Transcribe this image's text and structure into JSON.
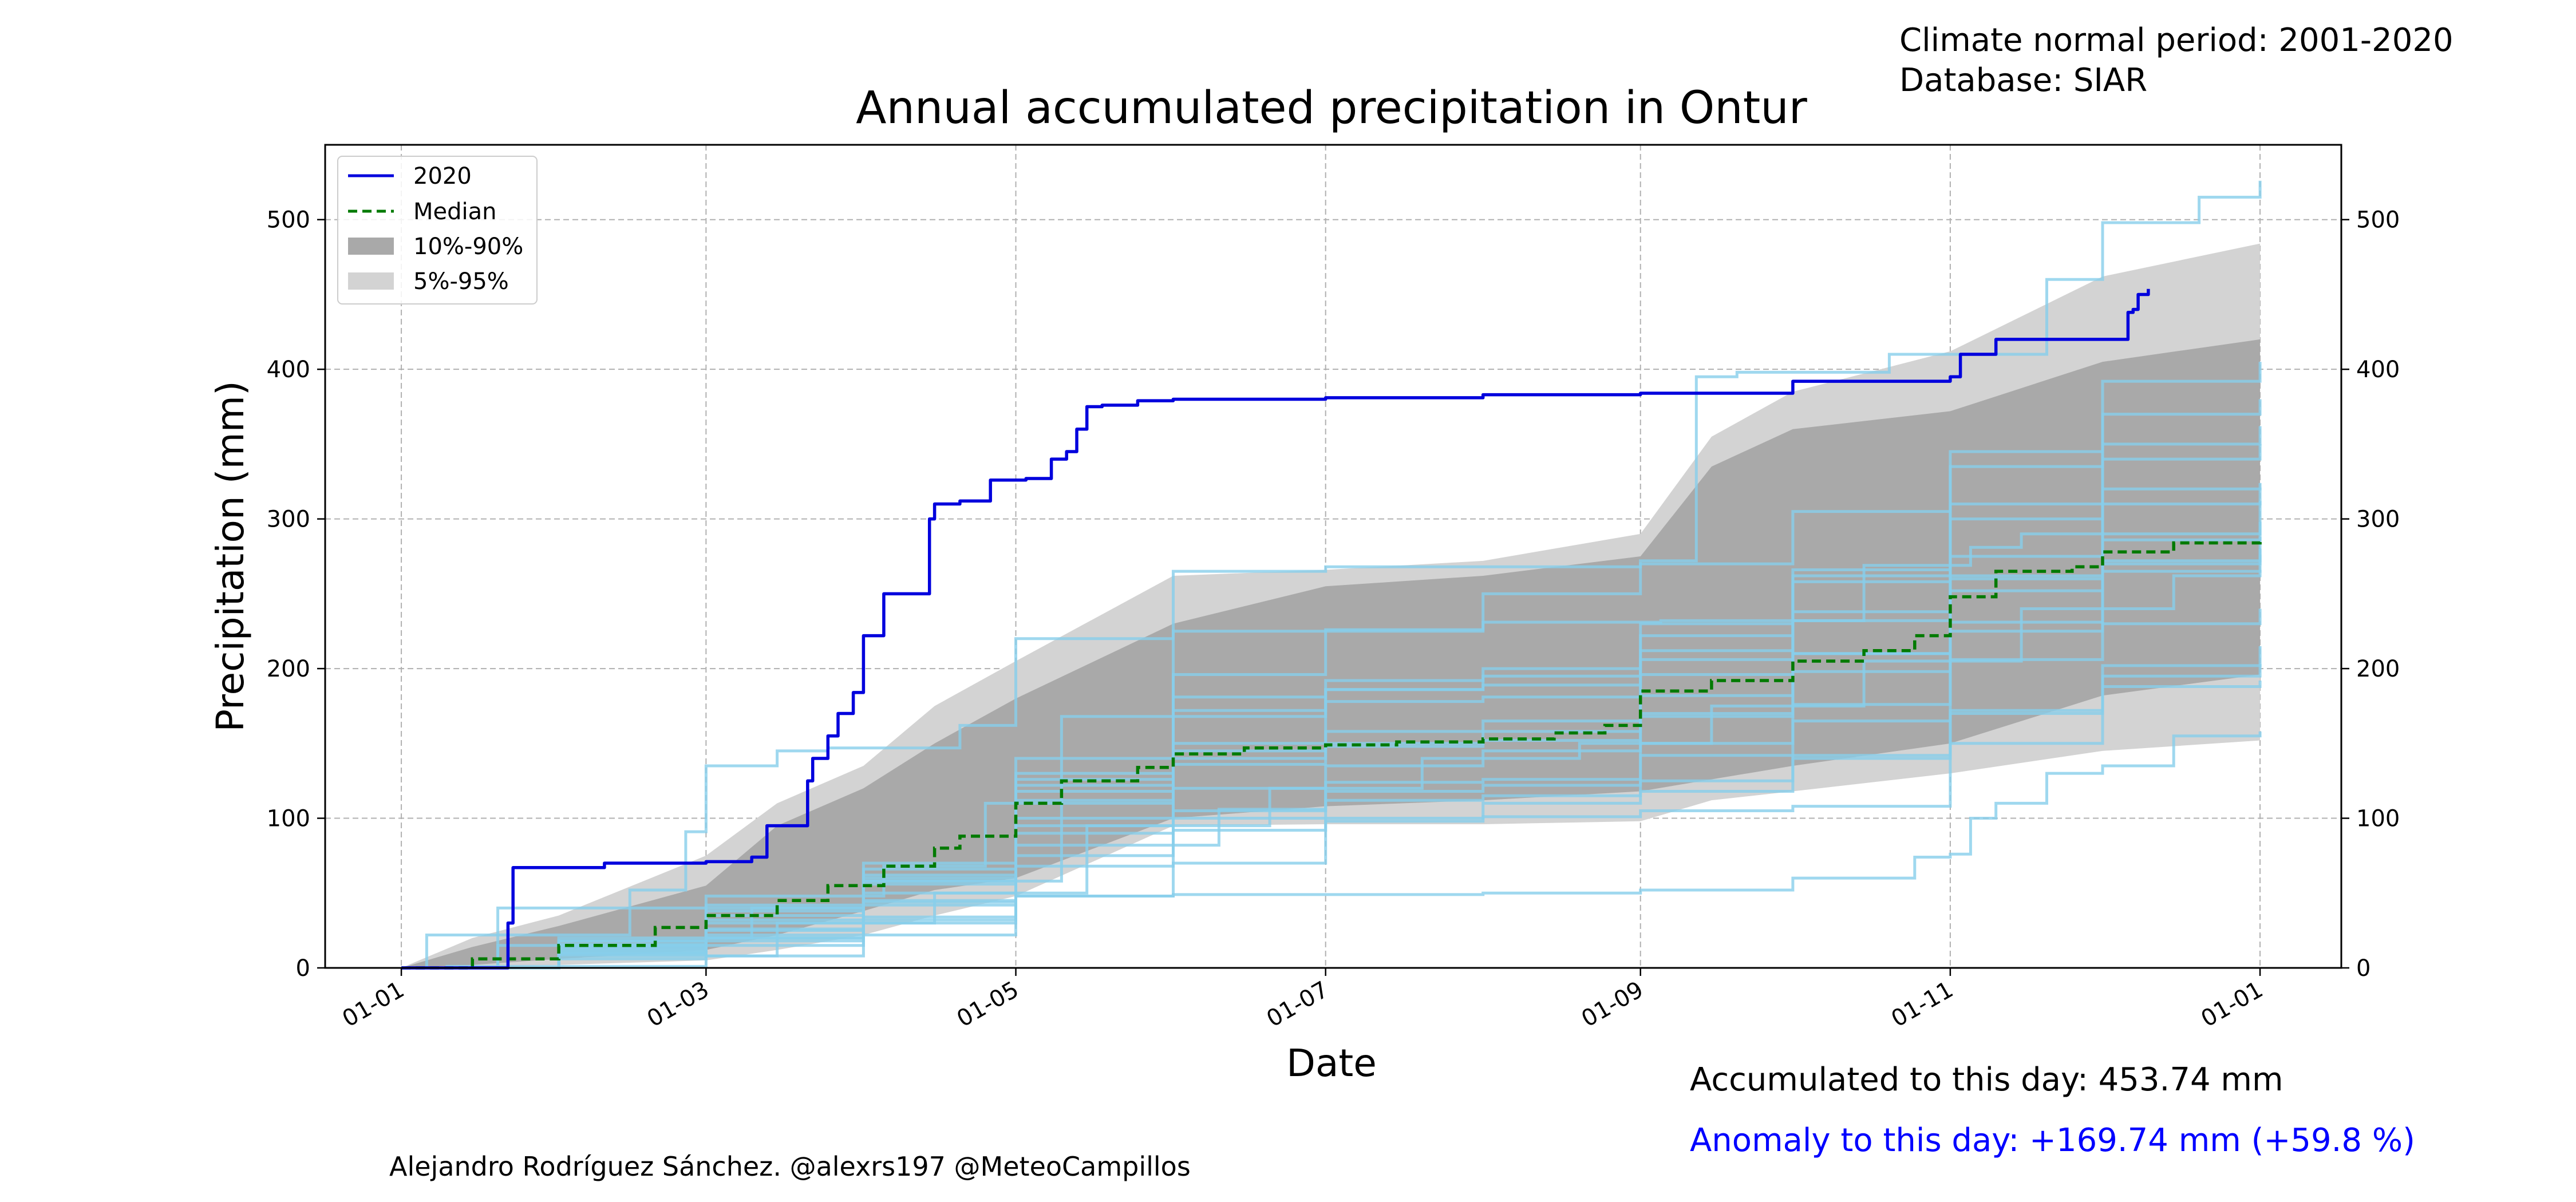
{
  "header": {
    "normal_period": "Climate normal period: 2001-2020",
    "database": "Database: SIAR"
  },
  "footer": {
    "credit": "Alejandro Rodríguez Sánchez. @alexrs197 @MeteoCampillos",
    "accumulated": "Accumulated to this day: 453.74 mm",
    "anomaly": "Anomaly to this day: +169.74 mm (+59.8 %)"
  },
  "colors": {
    "current": "#0000dd",
    "median": "#007a00",
    "band_10_90": "#a9a9a9",
    "band_5_95": "#d3d3d3",
    "history": "#87ceeb",
    "anomaly_text": "#0000ff"
  },
  "chart_data": {
    "type": "line",
    "title": "Annual accumulated precipitation in Ontur",
    "xlabel": "Date",
    "ylabel": "Precipitation (mm)",
    "x_ticks": [
      "01-01",
      "01-03",
      "01-05",
      "01-07",
      "01-09",
      "01-11",
      "01-01"
    ],
    "x_tick_dates": [
      "2020-01-01",
      "2020-03-01",
      "2020-05-01",
      "2020-07-01",
      "2020-09-01",
      "2020-11-01",
      "2021-01-01"
    ],
    "y_ticks": [
      0,
      100,
      200,
      300,
      400,
      500
    ],
    "xlim": [
      "2019-12-17",
      "2021-01-17"
    ],
    "ylim": [
      0,
      550
    ],
    "grid": true,
    "legend_position": "top-left",
    "legend": [
      {
        "label": "2020",
        "kind": "line"
      },
      {
        "label": "Median",
        "kind": "dashed"
      },
      {
        "label": "10%-90%",
        "kind": "band_10_90"
      },
      {
        "label": "5%-95%",
        "kind": "band_5_95"
      }
    ],
    "series": [
      {
        "name": "2020",
        "x": [
          "2020-01-01",
          "2020-01-10",
          "2020-01-19",
          "2020-01-22",
          "2020-01-23",
          "2020-02-10",
          "2020-03-01",
          "2020-03-10",
          "2020-03-12",
          "2020-03-13",
          "2020-03-21",
          "2020-03-22",
          "2020-03-25",
          "2020-03-27",
          "2020-03-30",
          "2020-04-01",
          "2020-04-05",
          "2020-04-06",
          "2020-04-08",
          "2020-04-10",
          "2020-04-14",
          "2020-04-15",
          "2020-04-20",
          "2020-04-24",
          "2020-04-26",
          "2020-05-03",
          "2020-05-08",
          "2020-05-11",
          "2020-05-13",
          "2020-05-15",
          "2020-05-18",
          "2020-05-22",
          "2020-05-25",
          "2020-06-01",
          "2020-06-10",
          "2020-07-01",
          "2020-08-01",
          "2020-09-01",
          "2020-09-18",
          "2020-10-01",
          "2020-10-10",
          "2020-11-01",
          "2020-11-03",
          "2020-11-10",
          "2020-11-25",
          "2020-11-27",
          "2020-12-06",
          "2020-12-07",
          "2020-12-08",
          "2020-12-10"
        ],
        "y": [
          0,
          0,
          0,
          30,
          67,
          70,
          71,
          74,
          74,
          95,
          125,
          140,
          155,
          170,
          184,
          222,
          250,
          250,
          250,
          250,
          300,
          310,
          312,
          312,
          326,
          327,
          340,
          345,
          360,
          375,
          376,
          376,
          379,
          380,
          380,
          381,
          383,
          384,
          384,
          392,
          392,
          395,
          410,
          420,
          420,
          420,
          438,
          440,
          450,
          453.74
        ]
      },
      {
        "name": "Median",
        "x": [
          "2020-01-01",
          "2020-01-15",
          "2020-02-01",
          "2020-02-20",
          "2020-03-01",
          "2020-03-15",
          "2020-03-25",
          "2020-04-05",
          "2020-04-15",
          "2020-04-20",
          "2020-05-01",
          "2020-05-10",
          "2020-05-25",
          "2020-06-01",
          "2020-06-15",
          "2020-07-01",
          "2020-07-15",
          "2020-08-01",
          "2020-08-15",
          "2020-08-25",
          "2020-09-01",
          "2020-09-15",
          "2020-10-01",
          "2020-10-15",
          "2020-10-25",
          "2020-11-01",
          "2020-11-10",
          "2020-11-25",
          "2020-12-01",
          "2020-12-15",
          "2021-01-01"
        ],
        "y": [
          0,
          6,
          15,
          27,
          35,
          45,
          55,
          68,
          80,
          88,
          110,
          125,
          134,
          143,
          147,
          149,
          151,
          153,
          157,
          162,
          185,
          192,
          205,
          212,
          222,
          248,
          265,
          268,
          278,
          284,
          286
        ]
      },
      {
        "name": "historical-1",
        "x": [
          "2020-01-01",
          "2020-01-06",
          "2020-02-15",
          "2020-02-26",
          "2020-03-01",
          "2020-03-15",
          "2020-03-25",
          "2020-04-20",
          "2020-05-01",
          "2020-06-01",
          "2020-08-01",
          "2020-09-05",
          "2020-10-15",
          "2020-11-05",
          "2020-11-15",
          "2020-12-01",
          "2021-01-01"
        ],
        "y": [
          0,
          22,
          52,
          91,
          135,
          145,
          147,
          162,
          220,
          225,
          231,
          232,
          269,
          281,
          290,
          320,
          321
        ]
      },
      {
        "name": "historical-2",
        "x": [
          "2020-01-01",
          "2020-01-10",
          "2020-03-01",
          "2020-04-01",
          "2020-05-01",
          "2020-06-01",
          "2020-08-01",
          "2020-09-01",
          "2020-10-01",
          "2020-10-25",
          "2020-11-01",
          "2020-11-05",
          "2020-11-10",
          "2020-11-20",
          "2020-12-01",
          "2020-12-15",
          "2021-01-01"
        ],
        "y": [
          0,
          1,
          8,
          22,
          48,
          49,
          50,
          52,
          60,
          74,
          76,
          100,
          110,
          130,
          135,
          155,
          158
        ]
      },
      {
        "name": "historical-3",
        "x": [
          "2020-01-01",
          "2020-01-20",
          "2020-03-01",
          "2020-04-05",
          "2020-04-25",
          "2020-06-01",
          "2020-07-01",
          "2020-09-01",
          "2020-09-12",
          "2020-09-20",
          "2020-10-20",
          "2020-11-20",
          "2020-12-01",
          "2020-12-20",
          "2021-01-01"
        ],
        "y": [
          0,
          40,
          48,
          68,
          110,
          265,
          268,
          272,
          395,
          398,
          410,
          460,
          498,
          515,
          526
        ]
      },
      {
        "name": "historical-4",
        "x": [
          "2020-01-01",
          "2020-02-01",
          "2020-03-10",
          "2020-04-01",
          "2020-05-10",
          "2020-06-01",
          "2020-07-01",
          "2020-08-01",
          "2020-09-01",
          "2020-10-01",
          "2020-11-01",
          "2020-12-01",
          "2021-01-01"
        ],
        "y": [
          0,
          20,
          40,
          58,
          168,
          181,
          186,
          189,
          196,
          238,
          262,
          286,
          298
        ]
      },
      {
        "name": "historical-5",
        "x": [
          "2020-01-01",
          "2020-01-20",
          "2020-03-01",
          "2020-04-01",
          "2020-05-01",
          "2020-06-01",
          "2020-08-01",
          "2020-09-01",
          "2020-10-01",
          "2020-11-01",
          "2020-12-01",
          "2021-01-01"
        ],
        "y": [
          0,
          15,
          20,
          32,
          75,
          100,
          110,
          118,
          140,
          170,
          188,
          192
        ]
      },
      {
        "name": "historical-6",
        "x": [
          "2020-01-01",
          "2020-02-01",
          "2020-03-01",
          "2020-04-01",
          "2020-05-01",
          "2020-06-10",
          "2020-07-01",
          "2020-08-01",
          "2020-09-01",
          "2020-10-01",
          "2020-11-01",
          "2020-12-01",
          "2021-01-01"
        ],
        "y": [
          0,
          11,
          25,
          42,
          82,
          106,
          135,
          145,
          170,
          210,
          260,
          290,
          312
        ]
      },
      {
        "name": "historical-7",
        "x": [
          "2020-01-01",
          "2020-02-01",
          "2020-03-15",
          "2020-04-15",
          "2020-05-15",
          "2020-06-20",
          "2020-07-20",
          "2020-08-20",
          "2020-09-15",
          "2020-10-15",
          "2020-11-15",
          "2020-12-15",
          "2021-01-01"
        ],
        "y": [
          0,
          8,
          30,
          50,
          95,
          120,
          140,
          150,
          175,
          205,
          240,
          262,
          266
        ]
      },
      {
        "name": "historical-8",
        "x": [
          "2020-01-01",
          "2020-02-01",
          "2020-03-01",
          "2020-04-01",
          "2020-05-01",
          "2020-06-01",
          "2020-07-01",
          "2020-08-01",
          "2020-09-01",
          "2020-10-01",
          "2020-11-01",
          "2020-12-01",
          "2021-01-01"
        ],
        "y": [
          0,
          6,
          15,
          30,
          48,
          70,
          98,
          101,
          105,
          108,
          150,
          195,
          203
        ]
      },
      {
        "name": "historical-9",
        "x": [
          "2020-01-01",
          "2020-02-01",
          "2020-03-01",
          "2020-04-01",
          "2020-05-01",
          "2020-06-01",
          "2020-07-01",
          "2020-08-01",
          "2020-09-01",
          "2020-10-01",
          "2020-11-01",
          "2020-12-01",
          "2021-01-01"
        ],
        "y": [
          0,
          12,
          35,
          62,
          118,
          150,
          186,
          195,
          212,
          266,
          310,
          350,
          362
        ]
      },
      {
        "name": "historical-10",
        "x": [
          "2020-01-01",
          "2020-02-01",
          "2020-03-01",
          "2020-04-01",
          "2020-05-01",
          "2020-06-01",
          "2020-07-01",
          "2020-08-01",
          "2020-09-01",
          "2020-10-01",
          "2020-11-01",
          "2020-12-01",
          "2021-01-01"
        ],
        "y": [
          0,
          10,
          22,
          45,
          95,
          120,
          124,
          126,
          150,
          176,
          206,
          230,
          240
        ]
      },
      {
        "name": "historical-11",
        "x": [
          "2020-01-01",
          "2020-02-01",
          "2020-03-01",
          "2020-04-01",
          "2020-05-01",
          "2020-06-01",
          "2020-07-01",
          "2020-08-01",
          "2020-09-01",
          "2020-10-01",
          "2020-11-01",
          "2020-12-01",
          "2021-01-01"
        ],
        "y": [
          0,
          18,
          38,
          60,
          112,
          140,
          158,
          165,
          230,
          262,
          345,
          392,
          405
        ]
      },
      {
        "name": "historical-12",
        "x": [
          "2020-01-01",
          "2020-02-01",
          "2020-03-01",
          "2020-04-01",
          "2020-05-01",
          "2020-06-01",
          "2020-07-01",
          "2020-08-01",
          "2020-09-01",
          "2020-10-01",
          "2020-11-01",
          "2020-12-01",
          "2021-01-01"
        ],
        "y": [
          0,
          9,
          20,
          50,
          100,
          136,
          148,
          152,
          168,
          198,
          252,
          270,
          276
        ]
      },
      {
        "name": "historical-13",
        "x": [
          "2020-01-01",
          "2020-02-01",
          "2020-03-01",
          "2020-04-01",
          "2020-05-01",
          "2020-06-01",
          "2020-07-01",
          "2020-08-01",
          "2020-09-01",
          "2020-10-01",
          "2020-11-01",
          "2020-12-01",
          "2021-01-01"
        ],
        "y": [
          0,
          14,
          30,
          56,
          126,
          168,
          178,
          181,
          206,
          232,
          275,
          310,
          324
        ]
      },
      {
        "name": "historical-14",
        "x": [
          "2020-01-01",
          "2020-02-01",
          "2020-03-01",
          "2020-04-01",
          "2020-05-01",
          "2020-06-01",
          "2020-07-01",
          "2020-08-01",
          "2020-09-01",
          "2020-10-01",
          "2020-11-01",
          "2020-12-01",
          "2021-01-01"
        ],
        "y": [
          0,
          13,
          32,
          58,
          122,
          145,
          150,
          158,
          182,
          210,
          231,
          265,
          280
        ]
      },
      {
        "name": "historical-15",
        "x": [
          "2020-01-01",
          "2020-02-01",
          "2020-03-01",
          "2020-04-01",
          "2020-05-01",
          "2020-06-01",
          "2020-07-01",
          "2020-08-01",
          "2020-09-01",
          "2020-10-01",
          "2020-11-01",
          "2020-12-01",
          "2021-01-01"
        ],
        "y": [
          0,
          16,
          40,
          70,
          130,
          196,
          226,
          250,
          270,
          305,
          335,
          370,
          380
        ]
      },
      {
        "name": "historical-16",
        "x": [
          "2020-01-01",
          "2020-02-01",
          "2020-03-01",
          "2020-04-01",
          "2020-05-01",
          "2020-06-01",
          "2020-07-01",
          "2020-08-01",
          "2020-09-01",
          "2020-10-01",
          "2020-11-01",
          "2020-12-01",
          "2021-01-01"
        ],
        "y": [
          0,
          15,
          26,
          44,
          90,
          105,
          112,
          115,
          125,
          142,
          172,
          202,
          215
        ]
      },
      {
        "name": "historical-17",
        "x": [
          "2020-01-01",
          "2020-02-01",
          "2020-03-01",
          "2020-04-01",
          "2020-05-01",
          "2020-06-01",
          "2020-07-01",
          "2020-08-01",
          "2020-09-01",
          "2020-10-01",
          "2020-11-01",
          "2020-12-01",
          "2021-01-01"
        ],
        "y": [
          0,
          18,
          42,
          66,
          140,
          172,
          192,
          200,
          222,
          258,
          300,
          340,
          350
        ]
      },
      {
        "name": "historical-18",
        "x": [
          "2020-01-01",
          "2020-02-01",
          "2020-03-01",
          "2020-04-01",
          "2020-05-01",
          "2020-06-01",
          "2020-07-01",
          "2020-08-01",
          "2020-09-01",
          "2020-10-01",
          "2020-11-01",
          "2020-12-01",
          "2021-01-01"
        ],
        "y": [
          0,
          10,
          18,
          34,
          68,
          92,
          118,
          122,
          142,
          165,
          225,
          272,
          288
        ]
      }
    ],
    "bands": [
      {
        "name": "5%-95%",
        "x": [
          "2020-01-01",
          "2020-01-15",
          "2020-02-01",
          "2020-03-01",
          "2020-03-15",
          "2020-04-01",
          "2020-04-15",
          "2020-05-01",
          "2020-06-01",
          "2020-07-01",
          "2020-08-01",
          "2020-09-01",
          "2020-09-15",
          "2020-10-01",
          "2020-11-01",
          "2020-12-01",
          "2021-01-01"
        ],
        "lower": [
          0,
          0,
          2,
          5,
          12,
          22,
          35,
          48,
          95,
          96,
          96,
          98,
          112,
          118,
          130,
          145,
          152
        ],
        "upper": [
          0,
          20,
          35,
          75,
          110,
          135,
          175,
          205,
          262,
          266,
          272,
          290,
          355,
          385,
          412,
          462,
          484
        ]
      },
      {
        "name": "10%-90%",
        "x": [
          "2020-01-01",
          "2020-01-15",
          "2020-02-01",
          "2020-03-01",
          "2020-03-15",
          "2020-04-01",
          "2020-04-15",
          "2020-05-01",
          "2020-06-01",
          "2020-07-01",
          "2020-08-01",
          "2020-09-01",
          "2020-09-15",
          "2020-10-01",
          "2020-11-01",
          "2020-12-01",
          "2021-01-01"
        ],
        "lower": [
          0,
          2,
          6,
          12,
          22,
          38,
          52,
          60,
          100,
          108,
          112,
          118,
          126,
          135,
          150,
          182,
          196
        ],
        "upper": [
          0,
          14,
          28,
          55,
          95,
          120,
          150,
          180,
          230,
          255,
          262,
          275,
          335,
          360,
          372,
          405,
          420
        ]
      }
    ]
  }
}
